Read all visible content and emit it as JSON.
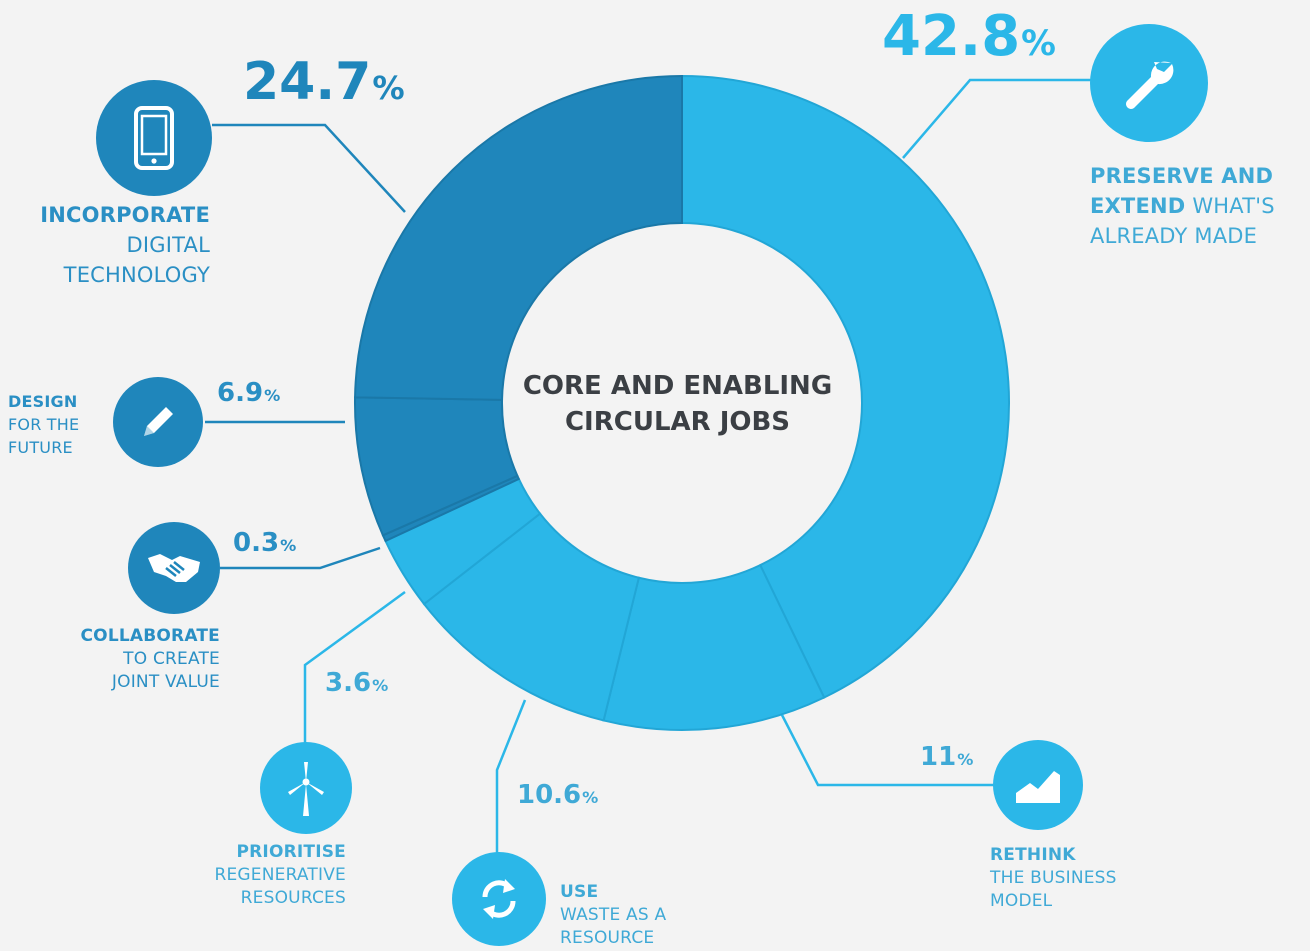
{
  "chart_data": {
    "type": "pie",
    "title": "CORE AND ENABLING CIRCULAR JOBS",
    "slices": [
      {
        "value": 42.8,
        "value_label": "42.8",
        "unit": "%",
        "label_bold": "PRESERVE AND EXTEND",
        "label_rest": "WHAT'S ALREADY MADE",
        "color": "#2bb7e8",
        "icon": "wrench-icon"
      },
      {
        "value": 11,
        "value_label": "11",
        "unit": "%",
        "label_bold": "RETHINK",
        "label_rest": "THE BUSINESS MODEL",
        "color": "#2bb7e8",
        "icon": "growth-chart-icon"
      },
      {
        "value": 10.6,
        "value_label": "10.6",
        "unit": "%",
        "label_bold": "USE",
        "label_rest": "WASTE AS A RESOURCE",
        "color": "#2bb7e8",
        "icon": "recycle-arrows-icon"
      },
      {
        "value": 3.6,
        "value_label": "3.6",
        "unit": "%",
        "label_bold": "PRIORITISE",
        "label_rest": "REGENERATIVE RESOURCES",
        "color": "#2bb7e8",
        "icon": "wind-turbine-icon"
      },
      {
        "value": 0.3,
        "value_label": "0.3",
        "unit": "%",
        "label_bold": "COLLABORATE",
        "label_rest": "TO CREATE JOINT VALUE",
        "color": "#1f86bb",
        "icon": "handshake-icon"
      },
      {
        "value": 6.9,
        "value_label": "6.9",
        "unit": "%",
        "label_bold": "DESIGN",
        "label_rest": "FOR THE FUTURE",
        "color": "#1f86bb",
        "icon": "pencil-icon"
      },
      {
        "value": 24.7,
        "value_label": "24.7",
        "unit": "%",
        "label_bold": "INCORPORATE",
        "label_rest": "DIGITAL TECHNOLOGY",
        "color": "#1f86bb",
        "icon": "smartphone-icon"
      }
    ]
  },
  "labels": {
    "incorporate": {
      "bold": "INCORPORATE",
      "l2": "DIGITAL",
      "l3": "TECHNOLOGY"
    },
    "preserve": {
      "bold1": "PRESERVE AND",
      "bold2": "EXTEND",
      "rest2": "WHAT'S",
      "l3": "ALREADY MADE"
    },
    "design": {
      "bold": "DESIGN",
      "l2": "FOR THE",
      "l3": "FUTURE"
    },
    "collaborate": {
      "bold": "COLLABORATE",
      "l2": "TO CREATE",
      "l3": "JOINT VALUE"
    },
    "prioritise": {
      "bold": "PRIORITISE",
      "l2": "REGENERATIVE",
      "l3": "RESOURCES"
    },
    "use": {
      "bold": "USE",
      "l2": "WASTE AS A",
      "l3": "RESOURCE"
    },
    "rethink": {
      "bold": "RETHINK",
      "l2": "THE BUSINESS",
      "l3": "MODEL"
    }
  },
  "colors": {
    "light": "#2bb7e8",
    "dark": "#1f86bb",
    "title": "#3b3f44",
    "label_light": "#3fa9d6",
    "label_dark": "#2a8fc4"
  }
}
